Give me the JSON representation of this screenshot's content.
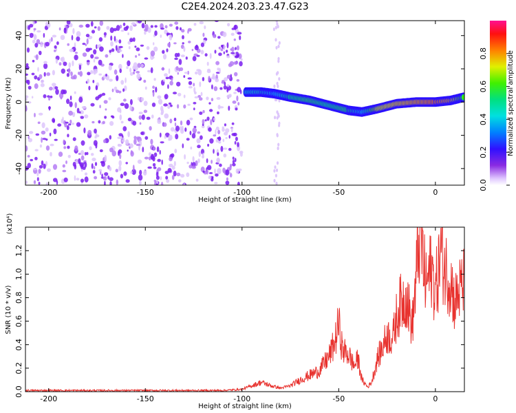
{
  "title": "C2E4.2024.203.23.47.G23",
  "colors": {
    "snr_line": "#e8332f",
    "scatter": "#8a2be2",
    "axis": "#000000"
  },
  "colorbar": {
    "label": "Normalized spectral amplitude",
    "ticks": [
      "0.0",
      "0.2",
      "0.4",
      "0.6",
      "0.8"
    ],
    "tick_values": [
      0.0,
      0.2,
      0.4,
      0.6,
      0.8
    ],
    "range": [
      0,
      1
    ],
    "colormap": "rainbow-to-magenta"
  },
  "chart_data": [
    {
      "type": "heatmap",
      "title": "C2E4.2024.203.23.47.G23",
      "xlabel": "Height of straight line (km)",
      "ylabel": "Frequency (Hz)",
      "xlim": [
        -212,
        15
      ],
      "ylim": [
        -50,
        49
      ],
      "xticks": [
        -200,
        -150,
        -100,
        -50,
        0
      ],
      "xtick_labels": [
        "-200",
        "-150",
        "-100",
        "-50",
        "0"
      ],
      "yticks": [
        -40,
        -20,
        0,
        20,
        40
      ],
      "ytick_labels": [
        "-40",
        "-20",
        "0",
        "20",
        "40"
      ],
      "noise_region_x": [
        -212,
        -100
      ],
      "track": {
        "x": [
          -98,
          -90,
          -83,
          -75,
          -65,
          -55,
          -45,
          -38,
          -30,
          -20,
          -10,
          0,
          8,
          15
        ],
        "y": [
          6,
          6,
          5,
          3,
          1,
          -2,
          -5,
          -6,
          -4,
          -1,
          0,
          0,
          1,
          3
        ],
        "amplitude": [
          0.45,
          0.5,
          0.4,
          0.55,
          0.6,
          0.55,
          0.6,
          0.4,
          0.8,
          0.85,
          0.9,
          0.95,
          0.9,
          0.6
        ]
      }
    },
    {
      "type": "line",
      "xlabel": "Height of straight line (km)",
      "ylabel": "SNR (10 * v/v)",
      "y_multiplier": "(x10⁴)",
      "xlim": [
        -212,
        15
      ],
      "ylim": [
        0,
        1.4
      ],
      "xticks": [
        -200,
        -150,
        -100,
        -50,
        0
      ],
      "xtick_labels": [
        "-200",
        "-150",
        "-100",
        "-50",
        "0"
      ],
      "yticks": [
        0.0,
        0.2,
        0.4,
        0.6,
        0.8,
        1.0,
        1.2
      ],
      "ytick_labels": [
        "0.0",
        "0.2",
        "0.4",
        "0.6",
        "0.8",
        "1.0",
        "1.2"
      ],
      "series": [
        {
          "x": [
            -212,
            -200,
            -150,
            -110,
            -100,
            -95,
            -90,
            -85,
            -80,
            -75,
            -70,
            -65,
            -60,
            -55,
            -52,
            -50,
            -48,
            -45,
            -42,
            -40,
            -38,
            -35,
            -33,
            -30,
            -28,
            -25,
            -22,
            -20,
            -18,
            -15,
            -12,
            -10,
            -8,
            -5,
            -2,
            0,
            3,
            5,
            8,
            10,
            12,
            15
          ],
          "y": [
            0.01,
            0.01,
            0.01,
            0.01,
            0.02,
            0.05,
            0.08,
            0.05,
            0.03,
            0.05,
            0.1,
            0.14,
            0.18,
            0.3,
            0.42,
            0.58,
            0.35,
            0.32,
            0.22,
            0.28,
            0.1,
            0.04,
            0.08,
            0.28,
            0.35,
            0.48,
            0.45,
            0.65,
            0.75,
            0.82,
            0.55,
            0.95,
            1.38,
            0.9,
            1.05,
            0.85,
            1.2,
            1.05,
            0.95,
            0.75,
            0.85,
            0.92
          ]
        }
      ]
    }
  ]
}
